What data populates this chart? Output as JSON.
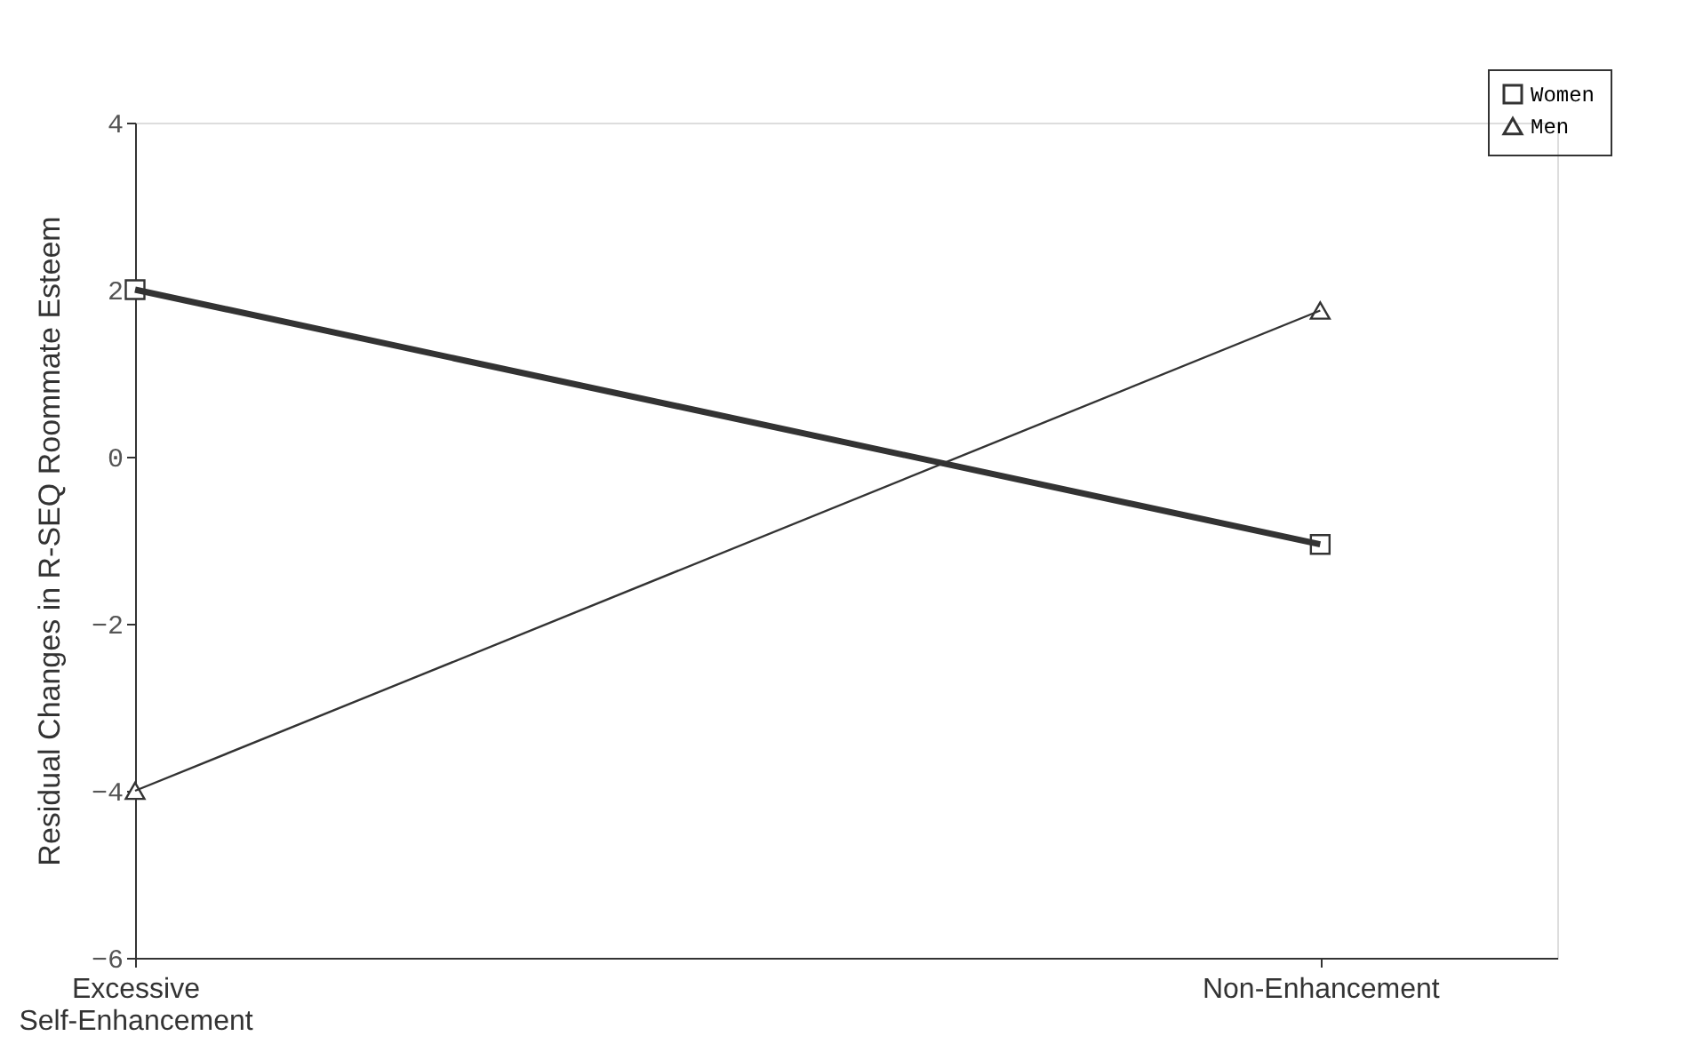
{
  "chart_data": {
    "type": "line",
    "ylabel": "Residual Changes in R-SEQ  Roommate Esteem",
    "categories": [
      "Excessive\nSelf-Enhancement",
      "Non-Enhancement"
    ],
    "ylim": [
      -6,
      4
    ],
    "yticks": [
      -6,
      -4,
      -2,
      0,
      2,
      4
    ],
    "series": [
      {
        "name": "Women",
        "color": "#333333",
        "values": [
          2,
          -1.05
        ],
        "marker": "square"
      },
      {
        "name": "Men",
        "color": "#333333",
        "values": [
          -4,
          1.75
        ],
        "marker": "triangle"
      }
    ],
    "grid": false,
    "legend": "top right",
    "line_style": "solid"
  }
}
